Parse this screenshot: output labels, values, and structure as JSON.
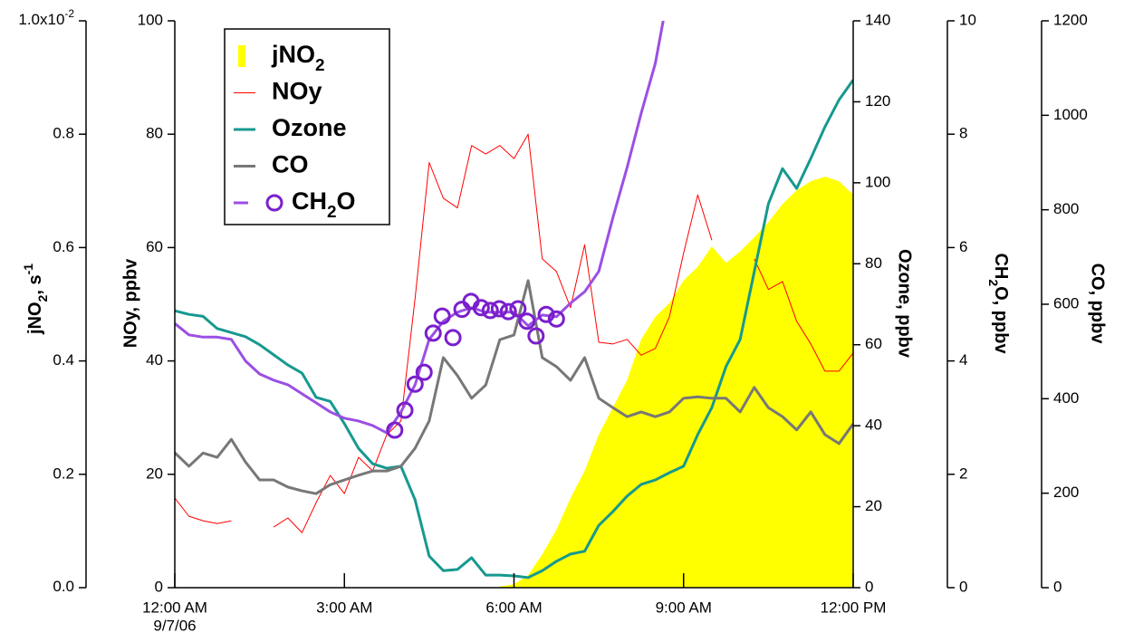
{
  "chart_data": {
    "type": "line",
    "x": [
      0,
      0.25,
      0.5,
      0.75,
      1,
      1.25,
      1.5,
      1.75,
      2,
      2.25,
      2.5,
      2.75,
      3,
      3.25,
      3.5,
      3.75,
      4,
      4.25,
      4.5,
      4.75,
      5,
      5.25,
      5.5,
      5.75,
      6,
      6.25,
      6.5,
      6.75,
      7,
      7.25,
      7.5,
      7.75,
      8,
      8.25,
      8.5,
      8.75,
      9,
      9.25,
      9.5,
      9.75,
      10,
      10.25,
      10.5,
      10.75,
      11,
      11.25,
      11.5,
      11.75,
      12
    ],
    "xlim": [
      0,
      12
    ],
    "xticks": [
      {
        "value": 0,
        "label": "12:00 AM"
      },
      {
        "value": 3,
        "label": "3:00 AM"
      },
      {
        "value": 6,
        "label": "6:00 AM"
      },
      {
        "value": 9,
        "label": "9:00 AM"
      },
      {
        "value": 12,
        "label": "12:00 PM"
      }
    ],
    "x_date_label": "9/7/06",
    "ylabel": "NOy, ppbv",
    "ylim": [
      0,
      100
    ],
    "yticks": [
      0,
      20,
      40,
      60,
      80,
      100
    ],
    "y2label": "Ozone, ppbv",
    "y2lim": [
      0,
      140
    ],
    "y2ticks": [
      0,
      20,
      40,
      60,
      80,
      100,
      120,
      140
    ],
    "y3label": "jNO2, s-1",
    "y3lim": [
      0,
      1
    ],
    "y3ticks": [
      {
        "value": 0,
        "label": "0.0"
      },
      0.2,
      0.4,
      0.6,
      0.8,
      {
        "value": 1,
        "label": "1.0x10-2"
      }
    ],
    "y4label": "CH2O, ppbv",
    "y4lim": [
      0,
      10
    ],
    "y4ticks": [
      0,
      2,
      4,
      6,
      8,
      10
    ],
    "y5label": "CO, ppbv",
    "y5lim": [
      0,
      1200
    ],
    "y5ticks": [
      0,
      200,
      400,
      600,
      800,
      1000,
      1200
    ],
    "legend": "upper left",
    "series": [
      {
        "name": "jNO2",
        "type": "area",
        "axis": "y3",
        "color": "#ffff00",
        "values": [
          null,
          null,
          null,
          null,
          null,
          null,
          null,
          null,
          null,
          null,
          null,
          null,
          null,
          null,
          null,
          null,
          null,
          null,
          null,
          null,
          null,
          null,
          null,
          0.002,
          0.006,
          0.022,
          0.059,
          0.102,
          0.158,
          0.206,
          0.27,
          0.318,
          0.366,
          0.438,
          0.478,
          0.502,
          0.542,
          0.566,
          0.602,
          0.573,
          0.593,
          0.618,
          0.645,
          0.677,
          0.701,
          0.717,
          0.725,
          0.717,
          0.693
        ]
      },
      {
        "name": "NOy",
        "type": "line",
        "axis": "y",
        "color": "#ff0000",
        "width": 1,
        "values": [
          15.8,
          12.6,
          11.8,
          11.3,
          11.8,
          null,
          null,
          10.7,
          12.3,
          9.7,
          15,
          19.8,
          16.6,
          23,
          20.6,
          27,
          29.4,
          51,
          75,
          68.7,
          67,
          78,
          76.5,
          78,
          75.7,
          80,
          58,
          55.8,
          49.4,
          60.5,
          43.3,
          43,
          43.8,
          41,
          42.2,
          47.8,
          59,
          69.3,
          61.3,
          null,
          null,
          58,
          52.6,
          54,
          47,
          43,
          38.2,
          38.2,
          41.4
        ]
      },
      {
        "name": "Ozone",
        "type": "line",
        "axis": "y2",
        "color": "#17998f",
        "width": 3,
        "values": [
          68.4,
          67.5,
          67,
          64,
          63,
          62,
          60,
          57.5,
          55,
          53,
          47,
          46,
          40.5,
          34.4,
          30.6,
          29.5,
          30,
          21.7,
          7.8,
          4.2,
          4.5,
          7.4,
          3.1,
          3.1,
          2.9,
          2.5,
          4.2,
          6.5,
          8.3,
          9,
          15.4,
          18.8,
          22.6,
          25.5,
          26.6,
          28.4,
          30,
          37.8,
          44.5,
          54.6,
          61.3,
          78,
          94.8,
          103.5,
          98.6,
          106,
          113.8,
          120.5,
          125.4
        ]
      },
      {
        "name": "CO",
        "type": "line",
        "axis": "y5",
        "color": "#777777",
        "width": 3,
        "values": [
          285.6,
          257,
          285,
          276,
          314,
          266,
          228,
          228,
          213,
          205,
          199,
          218,
          228,
          238,
          247,
          247,
          257,
          295,
          353,
          487,
          449,
          401,
          429,
          525,
          535,
          650,
          487,
          468,
          439,
          487,
          401,
          381,
          362,
          372,
          362,
          372,
          401,
          404,
          401,
          401,
          372,
          424,
          381,
          362,
          334,
          372,
          324,
          305,
          347
        ]
      },
      {
        "name": "CH2O",
        "type": "line",
        "axis": "y4",
        "color": "#9b4fe3",
        "marker_color": "#7a1fcc",
        "width": 3,
        "values": [
          4.66,
          4.46,
          4.42,
          4.42,
          4.38,
          4.0,
          3.77,
          3.66,
          3.58,
          3.42,
          3.26,
          3.1,
          2.99,
          2.94,
          2.86,
          2.73,
          3.1,
          3.58,
          4.38,
          4.7,
          4.86,
          4.94,
          4.86,
          4.86,
          4.86,
          4.62,
          4.81,
          4.78,
          5.02,
          5.22,
          5.58,
          6.53,
          7.41,
          8.37,
          9.25,
          10.6,
          null,
          null,
          null,
          null,
          null,
          null,
          null,
          null,
          null,
          null,
          null,
          null,
          null
        ],
        "marker_x": [
          3.89,
          4.07,
          4.25,
          4.41,
          4.57,
          4.73,
          4.92,
          5.08,
          5.24,
          5.42,
          5.58,
          5.74,
          5.9,
          6.07,
          6.23,
          6.39,
          6.57,
          6.75
        ],
        "marker_values": [
          2.78,
          3.13,
          3.59,
          3.8,
          4.49,
          4.79,
          4.41,
          4.91,
          5.05,
          4.94,
          4.89,
          4.92,
          4.87,
          4.92,
          4.7,
          4.44,
          4.82,
          4.74
        ]
      }
    ]
  }
}
